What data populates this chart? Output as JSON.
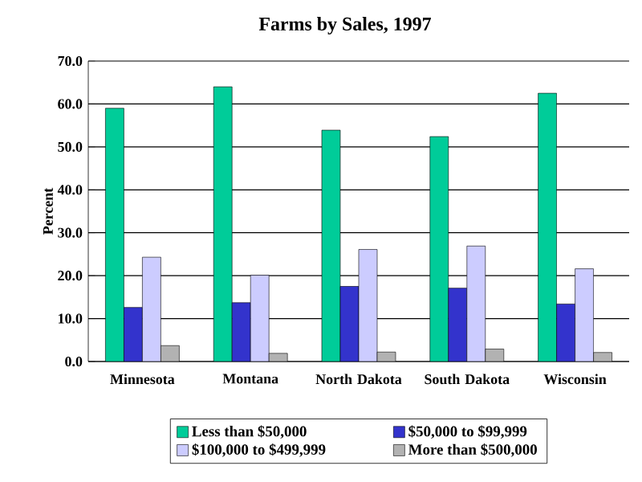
{
  "chart_data": {
    "type": "bar",
    "title": "Farms by Sales, 1997",
    "ylabel": "Percent",
    "categories": [
      "Minnesota",
      "Montana",
      "North Dakota",
      "South Dakota",
      "Wisconsin"
    ],
    "series": [
      {
        "name": "Less than $50,000",
        "color": "#00cc99",
        "values": [
          59.0,
          64.0,
          53.9,
          52.4,
          62.5
        ]
      },
      {
        "name": "$50,000 to $99,999",
        "color": "#3333cc",
        "values": [
          12.6,
          13.7,
          17.5,
          17.1,
          13.4
        ]
      },
      {
        "name": "$100,000 to $499,999",
        "color": "#ccccff",
        "values": [
          24.3,
          20.1,
          26.1,
          26.9,
          21.6
        ]
      },
      {
        "name": "More than $500,000",
        "color": "#b2b2b2",
        "values": [
          3.7,
          1.9,
          2.2,
          2.9,
          2.1
        ]
      }
    ],
    "ylim": [
      0,
      70
    ],
    "yticks": [
      {
        "value": 0,
        "label": "0.0"
      },
      {
        "value": 10,
        "label": "10.0"
      },
      {
        "value": 20,
        "label": "20.0"
      },
      {
        "value": 30,
        "label": "30.0"
      },
      {
        "value": 40,
        "label": "40.0"
      },
      {
        "value": 50,
        "label": "50.0"
      },
      {
        "value": 60,
        "label": "60.0"
      },
      {
        "value": 70,
        "label": "70.0"
      }
    ],
    "grid": "y",
    "legend": "bottom"
  }
}
